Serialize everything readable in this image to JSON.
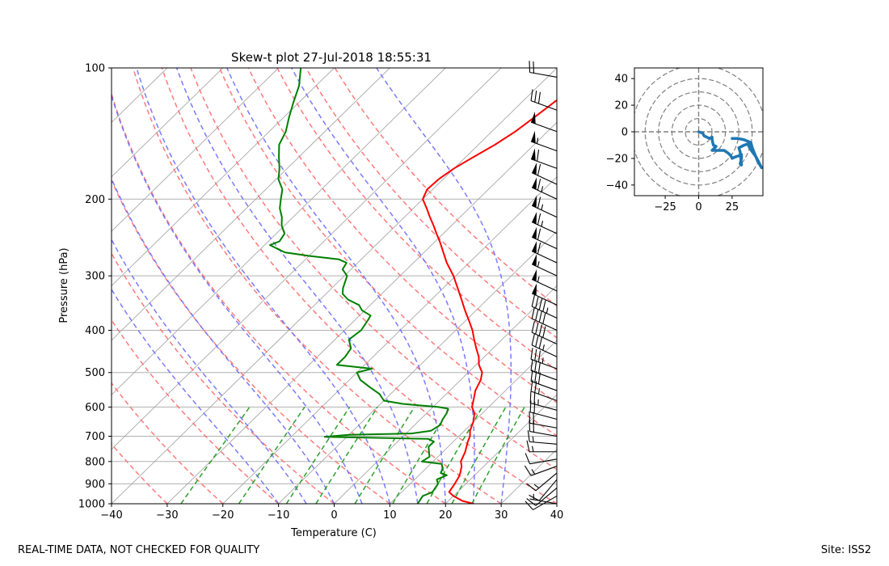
{
  "chart_data": [
    {
      "type": "line",
      "subtype": "skew-t log-p",
      "title": "Skew-t plot 27-Jul-2018 18:55:31",
      "xlabel": "Temperature (C)",
      "ylabel": "Pressure (hPa)",
      "xlim": [
        -40,
        40
      ],
      "ylim": [
        1000,
        100
      ],
      "xticks": [
        -40,
        -30,
        -20,
        -10,
        0,
        10,
        20,
        30,
        40
      ],
      "yticks": [
        100,
        200,
        300,
        400,
        500,
        600,
        700,
        800,
        900,
        1000
      ],
      "isotherm_start_values": [
        -130,
        -120,
        -110,
        -100,
        -90,
        -80,
        -70,
        -60,
        -50,
        -40,
        -30,
        -20,
        -10,
        0,
        10,
        20,
        30,
        40
      ],
      "dry_adiabat_theta_c": [
        -30,
        -20,
        -10,
        0,
        10,
        20,
        30,
        40,
        50,
        60,
        70,
        80,
        90,
        100
      ],
      "moist_adiabat_t1000_c": [
        -10,
        -5,
        0,
        5,
        10,
        15,
        20,
        25,
        30
      ],
      "mixing_ratio_gkg": [
        0.4,
        1,
        2,
        3,
        5,
        8,
        12,
        16,
        20
      ],
      "series": [
        {
          "name": "Temperature",
          "color": "#ff0000",
          "points": [
            [
              1000,
              25
            ],
            [
              985,
              22.5
            ],
            [
              960,
              20
            ],
            [
              940,
              18.5
            ],
            [
              900,
              18
            ],
            [
              870,
              17.5
            ],
            [
              850,
              17
            ],
            [
              820,
              16
            ],
            [
              800,
              15
            ],
            [
              760,
              14
            ],
            [
              720,
              12.6
            ],
            [
              700,
              12
            ],
            [
              680,
              11
            ],
            [
              650,
              10
            ],
            [
              620,
              8.6
            ],
            [
              600,
              7
            ],
            [
              570,
              5.6
            ],
            [
              550,
              4.6
            ],
            [
              520,
              3.6
            ],
            [
              500,
              2.5
            ],
            [
              480,
              0.5
            ],
            [
              460,
              -1
            ],
            [
              440,
              -3
            ],
            [
              420,
              -5
            ],
            [
              400,
              -7
            ],
            [
              380,
              -9.4
            ],
            [
              360,
              -12
            ],
            [
              340,
              -14.6
            ],
            [
              320,
              -17.4
            ],
            [
              300,
              -20.4
            ],
            [
              280,
              -24
            ],
            [
              260,
              -27.4
            ],
            [
              250,
              -29.2
            ],
            [
              240,
              -31.2
            ],
            [
              230,
              -33.2
            ],
            [
              220,
              -35.4
            ],
            [
              210,
              -37.6
            ],
            [
              200,
              -40
            ],
            [
              190,
              -41
            ],
            [
              180,
              -40.8
            ],
            [
              170,
              -40
            ],
            [
              160,
              -38.6
            ],
            [
              150,
              -37
            ],
            [
              140,
              -35.8
            ],
            [
              130,
              -35
            ],
            [
              120,
              -34.2
            ],
            [
              110,
              -33.4
            ],
            [
              100,
              -32
            ]
          ]
        },
        {
          "name": "Dewpoint",
          "color": "#008000",
          "points": [
            [
              1000,
              15
            ],
            [
              960,
              14.5
            ],
            [
              940,
              15.5
            ],
            [
              900,
              15
            ],
            [
              880,
              14
            ],
            [
              860,
              15
            ],
            [
              850,
              13.5
            ],
            [
              830,
              13
            ],
            [
              810,
              12
            ],
            [
              800,
              8
            ],
            [
              780,
              8.5
            ],
            [
              760,
              7.5
            ],
            [
              740,
              6.5
            ],
            [
              720,
              6.5
            ],
            [
              710,
              5
            ],
            [
              702,
              -14
            ],
            [
              695,
              -10
            ],
            [
              690,
              1
            ],
            [
              680,
              4
            ],
            [
              660,
              4.6
            ],
            [
              640,
              4
            ],
            [
              620,
              3.6
            ],
            [
              605,
              3
            ],
            [
              600,
              1
            ],
            [
              590,
              -6
            ],
            [
              580,
              -10
            ],
            [
              560,
              -12
            ],
            [
              540,
              -15
            ],
            [
              520,
              -18
            ],
            [
              500,
              -20
            ],
            [
              490,
              -18
            ],
            [
              480,
              -25
            ],
            [
              460,
              -25
            ],
            [
              440,
              -25.5
            ],
            [
              420,
              -27.5
            ],
            [
              400,
              -27
            ],
            [
              380,
              -27.6
            ],
            [
              370,
              -28
            ],
            [
              360,
              -30.5
            ],
            [
              350,
              -32
            ],
            [
              340,
              -35
            ],
            [
              330,
              -37
            ],
            [
              320,
              -38
            ],
            [
              300,
              -39.5
            ],
            [
              290,
              -41.5
            ],
            [
              280,
              -42
            ],
            [
              275,
              -44
            ],
            [
              270,
              -50
            ],
            [
              265,
              -55
            ],
            [
              260,
              -57
            ],
            [
              255,
              -59
            ],
            [
              250,
              -58
            ],
            [
              240,
              -58.5
            ],
            [
              230,
              -60.5
            ],
            [
              220,
              -62
            ],
            [
              210,
              -64
            ],
            [
              200,
              -65.5
            ],
            [
              190,
              -67
            ],
            [
              180,
              -69.6
            ],
            [
              170,
              -71.4
            ],
            [
              160,
              -73.6
            ],
            [
              150,
              -75.8
            ],
            [
              140,
              -77
            ],
            [
              130,
              -79
            ],
            [
              120,
              -81
            ],
            [
              110,
              -83
            ],
            [
              100,
              -86
            ]
          ]
        }
      ],
      "wind_barbs": [
        {
          "p": 1000,
          "spd_kt": 5,
          "dir_deg": 280
        },
        {
          "p": 960,
          "spd_kt": 10,
          "dir_deg": 240
        },
        {
          "p": 920,
          "spd_kt": 10,
          "dir_deg": 230
        },
        {
          "p": 880,
          "spd_kt": 10,
          "dir_deg": 220
        },
        {
          "p": 850,
          "spd_kt": 15,
          "dir_deg": 230
        },
        {
          "p": 820,
          "spd_kt": 15,
          "dir_deg": 250
        },
        {
          "p": 790,
          "spd_kt": 10,
          "dir_deg": 260
        },
        {
          "p": 760,
          "spd_kt": 15,
          "dir_deg": 270
        },
        {
          "p": 730,
          "spd_kt": 15,
          "dir_deg": 275
        },
        {
          "p": 700,
          "spd_kt": 20,
          "dir_deg": 280
        },
        {
          "p": 670,
          "spd_kt": 20,
          "dir_deg": 280
        },
        {
          "p": 640,
          "spd_kt": 20,
          "dir_deg": 285
        },
        {
          "p": 610,
          "spd_kt": 25,
          "dir_deg": 285
        },
        {
          "p": 580,
          "spd_kt": 25,
          "dir_deg": 290
        },
        {
          "p": 550,
          "spd_kt": 30,
          "dir_deg": 290
        },
        {
          "p": 520,
          "spd_kt": 30,
          "dir_deg": 290
        },
        {
          "p": 490,
          "spd_kt": 35,
          "dir_deg": 290
        },
        {
          "p": 460,
          "spd_kt": 35,
          "dir_deg": 295
        },
        {
          "p": 430,
          "spd_kt": 40,
          "dir_deg": 295
        },
        {
          "p": 400,
          "spd_kt": 40,
          "dir_deg": 295
        },
        {
          "p": 375,
          "spd_kt": 45,
          "dir_deg": 295
        },
        {
          "p": 350,
          "spd_kt": 50,
          "dir_deg": 295
        },
        {
          "p": 325,
          "spd_kt": 55,
          "dir_deg": 295
        },
        {
          "p": 300,
          "spd_kt": 55,
          "dir_deg": 295
        },
        {
          "p": 280,
          "spd_kt": 60,
          "dir_deg": 295
        },
        {
          "p": 260,
          "spd_kt": 60,
          "dir_deg": 295
        },
        {
          "p": 240,
          "spd_kt": 65,
          "dir_deg": 295
        },
        {
          "p": 220,
          "spd_kt": 65,
          "dir_deg": 295
        },
        {
          "p": 200,
          "spd_kt": 65,
          "dir_deg": 295
        },
        {
          "p": 185,
          "spd_kt": 60,
          "dir_deg": 295
        },
        {
          "p": 170,
          "spd_kt": 60,
          "dir_deg": 290
        },
        {
          "p": 155,
          "spd_kt": 55,
          "dir_deg": 290
        },
        {
          "p": 140,
          "spd_kt": 50,
          "dir_deg": 290
        },
        {
          "p": 125,
          "spd_kt": 30,
          "dir_deg": 290
        },
        {
          "p": 105,
          "spd_kt": 20,
          "dir_deg": 280
        }
      ]
    },
    {
      "type": "line",
      "subtype": "hodograph",
      "title": "",
      "xlim": [
        -48,
        48
      ],
      "ylim": [
        -48,
        48
      ],
      "xticks": [
        -25,
        0,
        25
      ],
      "yticks": [
        -40,
        -20,
        0,
        20,
        40
      ],
      "ring_radii": [
        10,
        20,
        30,
        40,
        50
      ],
      "series": [
        {
          "name": "Hodograph",
          "color": "#1f77b4",
          "points": [
            [
              0,
              0
            ],
            [
              3,
              -1
            ],
            [
              4,
              -3
            ],
            [
              6,
              -4
            ],
            [
              8,
              -5
            ],
            [
              10,
              -4
            ],
            [
              10,
              -6
            ],
            [
              11,
              -10
            ],
            [
              13,
              -11
            ],
            [
              10,
              -14
            ],
            [
              15,
              -14
            ],
            [
              19,
              -14
            ],
            [
              22,
              -16
            ],
            [
              24,
              -18
            ],
            [
              25,
              -20
            ],
            [
              27,
              -19
            ],
            [
              30,
              -18
            ],
            [
              32,
              -17
            ],
            [
              32,
              -20
            ],
            [
              31,
              -24
            ],
            [
              32,
              -25
            ],
            [
              31,
              -15
            ],
            [
              30,
              -12
            ],
            [
              34,
              -10
            ],
            [
              37,
              -9
            ],
            [
              38,
              -12
            ],
            [
              40,
              -15
            ],
            [
              43,
              -19
            ],
            [
              45,
              -23
            ],
            [
              47,
              -27
            ],
            [
              44,
              -22
            ],
            [
              42,
              -17
            ],
            [
              40,
              -12
            ],
            [
              39,
              -8
            ],
            [
              34,
              -6
            ],
            [
              29,
              -5
            ],
            [
              25,
              -5
            ]
          ]
        }
      ]
    }
  ],
  "footer": {
    "left": "REAL-TIME DATA, NOT CHECKED FOR QUALITY",
    "right": "Site: ISS2"
  }
}
